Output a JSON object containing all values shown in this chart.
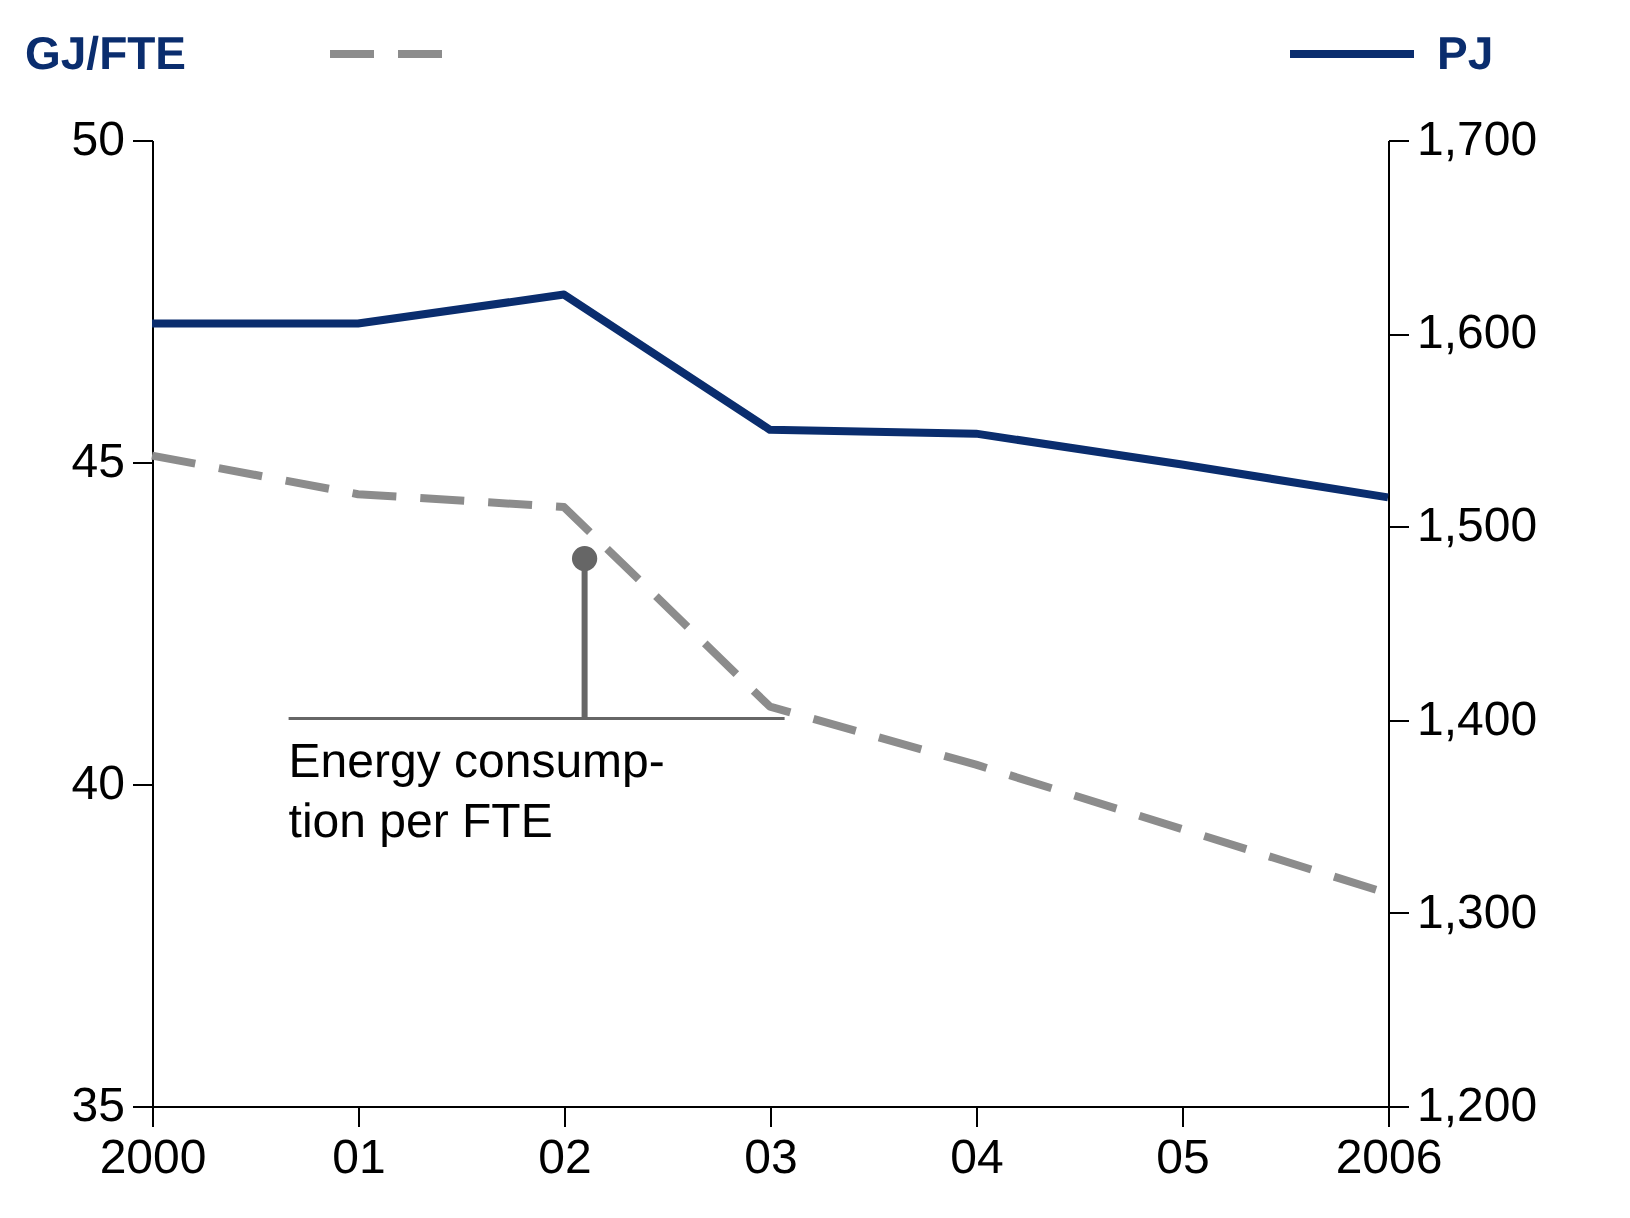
{
  "chart_data": {
    "type": "line",
    "ylabel": "GJ/FTE",
    "y2label": "PJ",
    "x": [
      2000,
      2001,
      2002,
      2003,
      2004,
      2005,
      2006
    ],
    "xlim": [
      2000,
      2006
    ],
    "xticks": [
      2000,
      {
        "value": 2001,
        "label": "01"
      },
      {
        "value": 2002,
        "label": "02"
      },
      {
        "value": 2003,
        "label": "03"
      },
      {
        "value": 2004,
        "label": "04"
      },
      {
        "value": 2005,
        "label": "05"
      },
      2006
    ],
    "ylim": [
      35,
      50
    ],
    "yticks": [
      35,
      40,
      45,
      50
    ],
    "y2lim": [
      1200,
      1700
    ],
    "y2ticks": [
      {
        "value": 1200,
        "label": "1,200"
      },
      {
        "value": 1300,
        "label": "1,300"
      },
      {
        "value": 1400,
        "label": "1,400"
      },
      {
        "value": 1500,
        "label": "1,500"
      },
      {
        "value": 1600,
        "label": "1,600"
      },
      {
        "value": 1700,
        "label": "1,700"
      }
    ],
    "series": [
      {
        "color": "#8c8c8c",
        "line_style": "dashed",
        "values": [
          45.1,
          44.5,
          44.3,
          41.2,
          40.3,
          39.3,
          38.3
        ]
      },
      {
        "color": "#0a2d6e",
        "line_style": "solid",
        "axis": "y2",
        "values": [
          1605,
          1605,
          1620,
          1550,
          1548,
          1532,
          1515
        ]
      }
    ],
    "annotations": [
      {
        "text": "Energy consump-\ntion per FTE",
        "x": 2002.1,
        "y": 43.5
      }
    ]
  }
}
